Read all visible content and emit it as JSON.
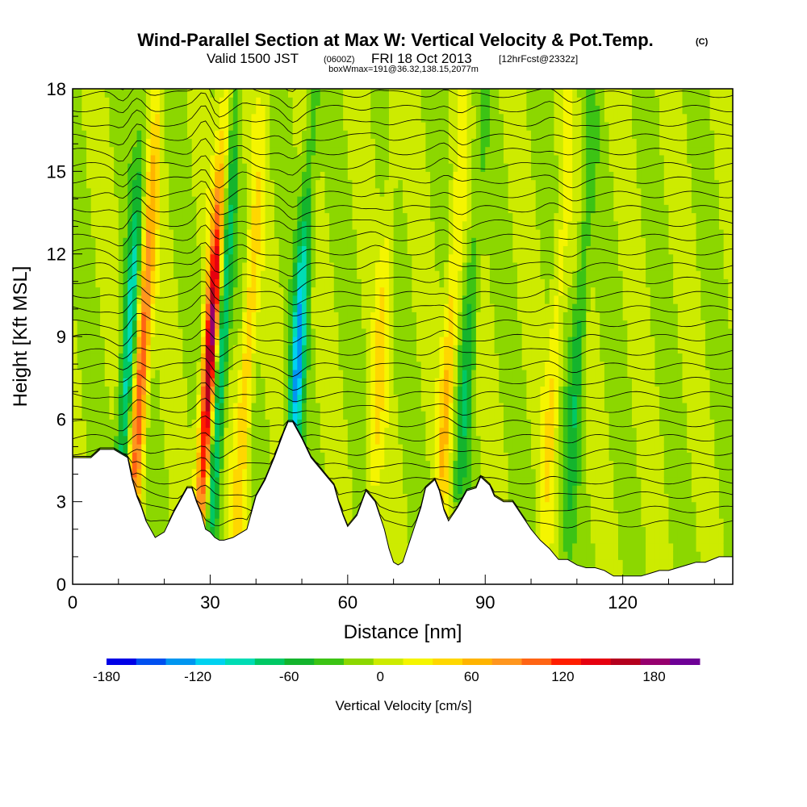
{
  "title": {
    "main": "Wind-Parallel Section at Max W: Vertical Velocity & Pot.Temp.",
    "copyright": "(C)",
    "valid_prefix": "Valid 1500 JST",
    "valid_utc": "(0600Z)",
    "valid_date": "FRI 18 Oct 2013",
    "forecast": "[12hrFcst@2332z]",
    "box_info": "boxWmax=191@36.32,138.15,2077m"
  },
  "chart_data": {
    "type": "heatmap",
    "xlabel": "Distance [nm]",
    "ylabel": "Height [Kft MSL]",
    "xlim": [
      0,
      144
    ],
    "ylim": [
      0,
      18
    ],
    "x_ticks": [
      "0",
      "30",
      "60",
      "90",
      "120"
    ],
    "y_ticks": [
      "0",
      "3",
      "6",
      "9",
      "12",
      "15",
      "18"
    ],
    "colorbar": {
      "label": "Vertical Velocity [cm/s]",
      "min": -180,
      "max": 210,
      "step": 20,
      "tick_values": [
        -180,
        -120,
        -60,
        0,
        60,
        120,
        180
      ],
      "tick_labels": [
        "-180",
        "-120",
        "-60",
        "0",
        "60",
        "120",
        "180"
      ],
      "colors": [
        "#0000e6",
        "#0050f0",
        "#0096f0",
        "#00d2f0",
        "#00dcb4",
        "#00c864",
        "#14b42d",
        "#3cc314",
        "#8cd700",
        "#cdeb00",
        "#f5f500",
        "#ffd700",
        "#ffb400",
        "#ff961e",
        "#ff6414",
        "#ff1e00",
        "#e6000f",
        "#b4001e",
        "#96006e",
        "#6e0096"
      ]
    },
    "max_w": {
      "value_cms": 191,
      "lat": 36.32,
      "lon": 138.15,
      "height_m": 2077
    },
    "terrain_kft": {
      "x": [
        0,
        4,
        6,
        9,
        12,
        13,
        14,
        15,
        16,
        17,
        18,
        20,
        22,
        24,
        25,
        26,
        27,
        28,
        29,
        30,
        31,
        32,
        33,
        35,
        38,
        40,
        42,
        44,
        46,
        47,
        48,
        50,
        52,
        55,
        57,
        58,
        59,
        60,
        62,
        64,
        66,
        68,
        69,
        70,
        71,
        72,
        74,
        76,
        77,
        79,
        80,
        81,
        82,
        84,
        86,
        88,
        89,
        91,
        92,
        94,
        96,
        98,
        100,
        102,
        104,
        106,
        108,
        110,
        112,
        114,
        116,
        118,
        120,
        122,
        124,
        126,
        128,
        130,
        132,
        134,
        136,
        138,
        141,
        144
      ],
      "y": [
        4.6,
        4.6,
        4.9,
        4.9,
        4.6,
        3.8,
        3.2,
        2.8,
        2.3,
        2.0,
        1.7,
        1.9,
        2.6,
        3.2,
        3.5,
        3.5,
        3.0,
        2.6,
        2.0,
        1.9,
        1.7,
        1.6,
        1.6,
        1.7,
        2.0,
        3.2,
        3.8,
        4.6,
        5.5,
        5.9,
        5.9,
        5.3,
        4.6,
        4.0,
        3.6,
        3.0,
        2.5,
        2.1,
        2.5,
        3.4,
        3.0,
        2.0,
        1.3,
        0.8,
        0.7,
        0.8,
        1.8,
        2.8,
        3.5,
        3.8,
        3.4,
        2.7,
        2.3,
        2.8,
        3.4,
        3.5,
        3.9,
        3.6,
        3.2,
        3.0,
        3.0,
        2.5,
        2.0,
        1.6,
        1.3,
        0.9,
        0.9,
        0.7,
        0.6,
        0.6,
        0.5,
        0.3,
        0.3,
        0.3,
        0.3,
        0.4,
        0.5,
        0.5,
        0.6,
        0.7,
        0.8,
        0.8,
        1.0,
        1.0
      ]
    },
    "updraft_cores": [
      {
        "x_nm": 14,
        "peak_cms": 120
      },
      {
        "x_nm": 29,
        "peak_cms": 191
      },
      {
        "x_nm": 37,
        "peak_cms": 60
      },
      {
        "x_nm": 66,
        "peak_cms": 40
      },
      {
        "x_nm": 81,
        "peak_cms": 60
      },
      {
        "x_nm": 104,
        "peak_cms": 40
      }
    ],
    "downdraft_cores": [
      {
        "x_nm": 11,
        "peak_cms": -90
      },
      {
        "x_nm": 31,
        "peak_cms": -110
      },
      {
        "x_nm": 48,
        "peak_cms": -110
      },
      {
        "x_nm": 85,
        "peak_cms": -50
      },
      {
        "x_nm": 109,
        "peak_cms": -50
      }
    ]
  }
}
